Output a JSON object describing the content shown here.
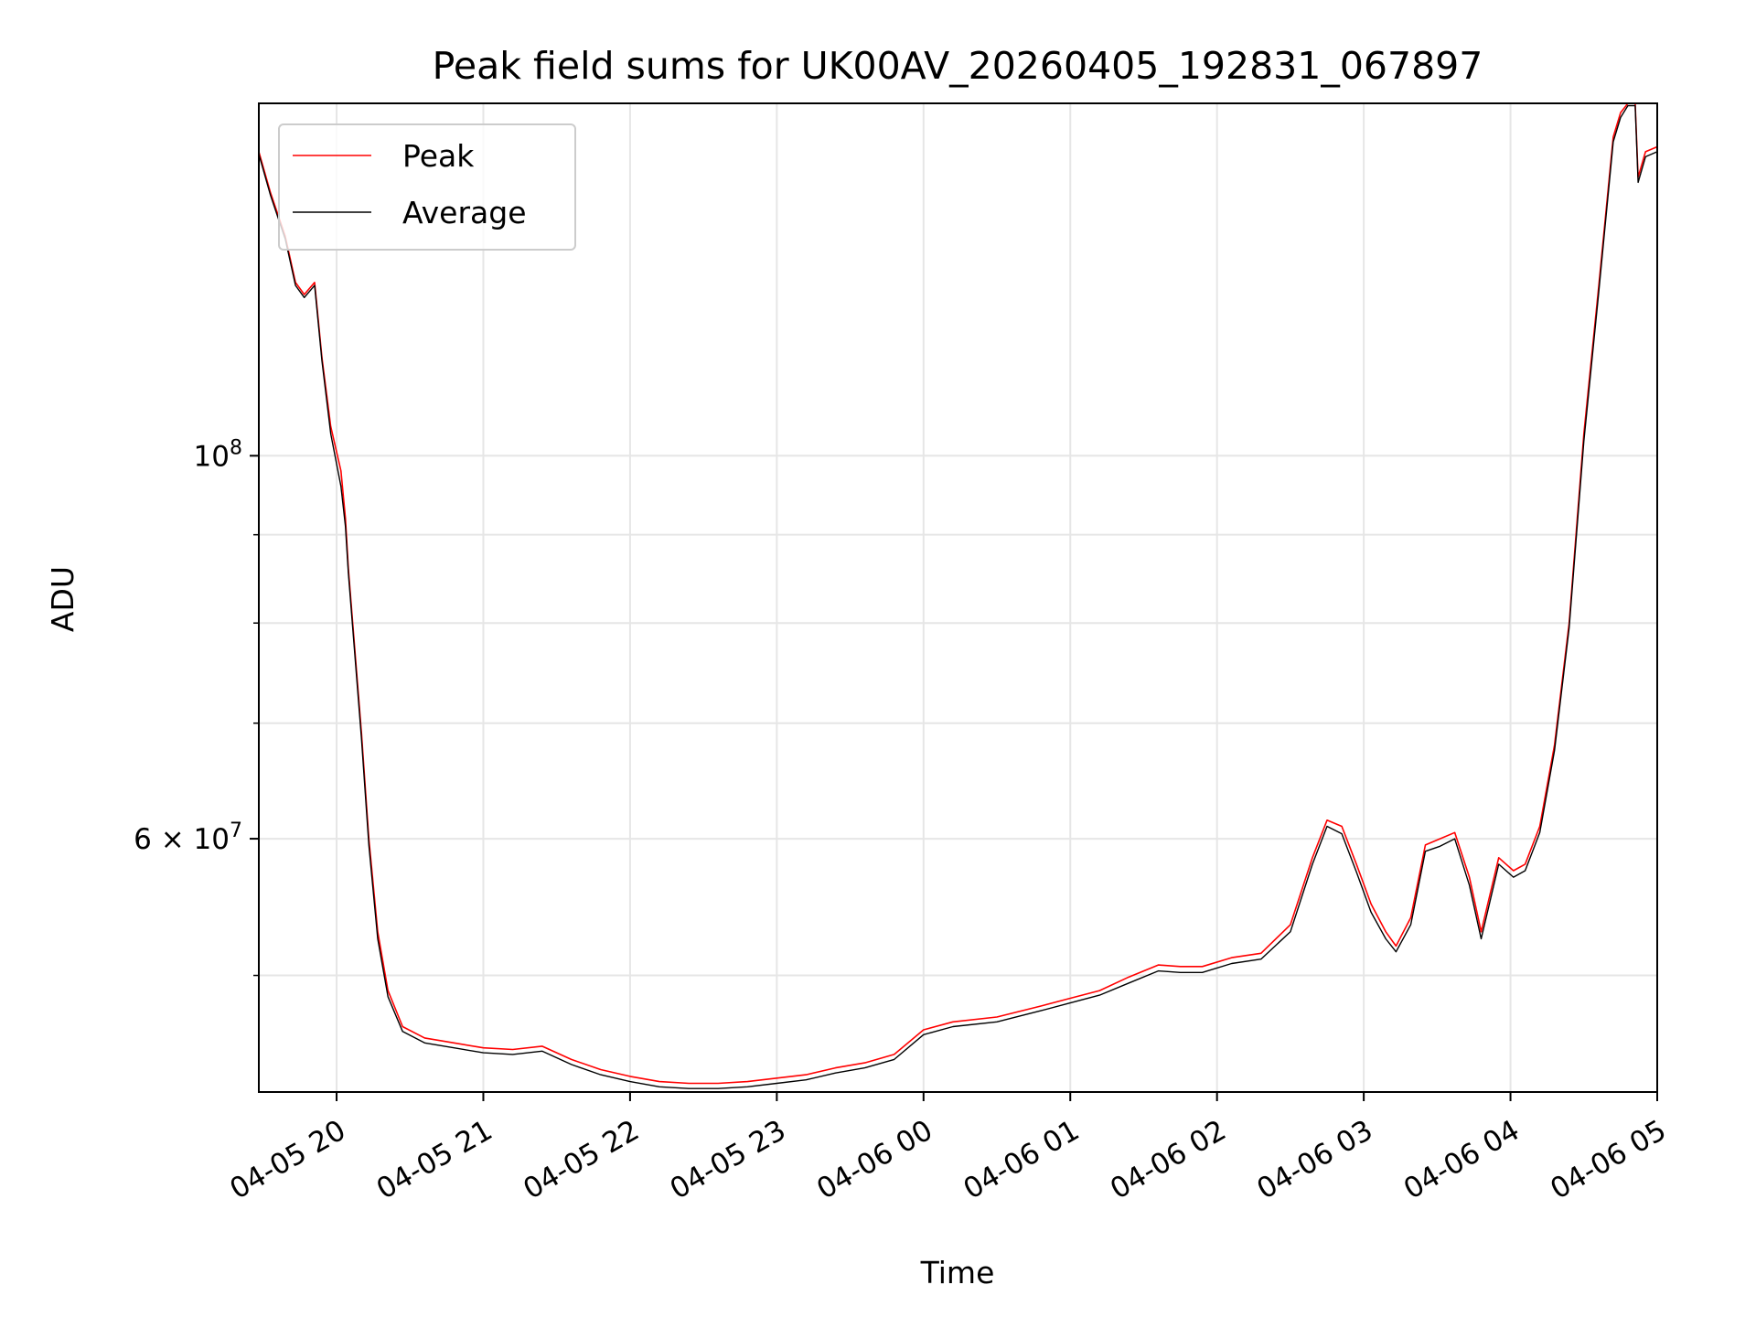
{
  "chart_data": {
    "type": "line",
    "title": "Peak field sums for UK00AV_20260405_192831_067897",
    "xlabel": "Time",
    "ylabel": "ADU",
    "yscale": "log",
    "ylim": [
      42800000,
      160000000
    ],
    "xlim_hours": [
      19.47,
      29.0
    ],
    "grid": true,
    "legend_position": "upper-left",
    "x_ticks": [
      {
        "hour": 20,
        "label": "04-05 20"
      },
      {
        "hour": 21,
        "label": "04-05 21"
      },
      {
        "hour": 22,
        "label": "04-05 22"
      },
      {
        "hour": 23,
        "label": "04-05 23"
      },
      {
        "hour": 24,
        "label": "04-06 00"
      },
      {
        "hour": 25,
        "label": "04-06 01"
      },
      {
        "hour": 26,
        "label": "04-06 02"
      },
      {
        "hour": 27,
        "label": "04-06 03"
      },
      {
        "hour": 28,
        "label": "04-06 04"
      },
      {
        "hour": 29,
        "label": "04-06 05"
      }
    ],
    "y_major_ticks": [
      {
        "value": 100000000,
        "base": "10",
        "exp": "8"
      },
      {
        "value": 60000000,
        "mantissa": "6",
        "times": "×",
        "base": "10",
        "exp": "7"
      }
    ],
    "y_minor_tick_values": [
      50000000,
      70000000,
      80000000,
      90000000
    ],
    "series": [
      {
        "name": "Peak",
        "color": "#ff0000",
        "x_hours": [
          19.47,
          19.55,
          19.65,
          19.72,
          19.78,
          19.85,
          19.9,
          19.96,
          20.03,
          20.06,
          20.08,
          20.12,
          20.17,
          20.22,
          20.28,
          20.35,
          20.45,
          20.6,
          20.8,
          21.0,
          21.2,
          21.4,
          21.6,
          21.8,
          22.0,
          22.2,
          22.4,
          22.6,
          22.8,
          23.0,
          23.2,
          23.4,
          23.6,
          23.8,
          24.0,
          24.2,
          24.5,
          24.8,
          25.0,
          25.2,
          25.4,
          25.6,
          25.75,
          25.9,
          26.1,
          26.3,
          26.5,
          26.65,
          26.75,
          26.85,
          26.95,
          27.05,
          27.15,
          27.22,
          27.32,
          27.42,
          27.52,
          27.62,
          27.72,
          27.8,
          27.92,
          28.02,
          28.1,
          28.2,
          28.3,
          28.4,
          28.5,
          28.6,
          28.7,
          28.75,
          28.8,
          28.85,
          28.87,
          28.92,
          29.0
        ],
        "y_values": [
          150000000,
          142000000,
          134000000,
          126000000,
          124000000,
          126000000,
          114000000,
          104000000,
          98000000,
          92000000,
          86000000,
          78000000,
          69000000,
          60000000,
          53000000,
          49000000,
          46700000,
          46000000,
          45700000,
          45400000,
          45300000,
          45500000,
          44700000,
          44100000,
          43700000,
          43400000,
          43300000,
          43300000,
          43400000,
          43600000,
          43800000,
          44200000,
          44500000,
          45000000,
          46500000,
          47000000,
          47300000,
          48000000,
          48500000,
          49000000,
          49900000,
          50700000,
          50600000,
          50600000,
          51200000,
          51500000,
          53500000,
          58500000,
          61500000,
          61000000,
          58000000,
          55000000,
          53000000,
          52000000,
          54000000,
          59500000,
          60000000,
          60500000,
          57000000,
          53000000,
          58500000,
          57500000,
          58000000,
          61000000,
          68000000,
          80000000,
          103000000,
          125000000,
          153000000,
          158000000,
          160000000,
          160000000,
          145000000,
          150000000,
          151000000
        ]
      },
      {
        "name": "Average",
        "color": "#000000",
        "x_hours": [
          19.47,
          19.55,
          19.65,
          19.72,
          19.78,
          19.85,
          19.9,
          19.96,
          20.03,
          20.06,
          20.08,
          20.12,
          20.17,
          20.22,
          20.28,
          20.35,
          20.45,
          20.6,
          20.8,
          21.0,
          21.2,
          21.4,
          21.6,
          21.8,
          22.0,
          22.2,
          22.4,
          22.6,
          22.8,
          23.0,
          23.2,
          23.4,
          23.6,
          23.8,
          24.0,
          24.2,
          24.5,
          24.8,
          25.0,
          25.2,
          25.4,
          25.6,
          25.75,
          25.9,
          26.1,
          26.3,
          26.5,
          26.65,
          26.75,
          26.85,
          26.95,
          27.05,
          27.15,
          27.22,
          27.32,
          27.42,
          27.52,
          27.62,
          27.72,
          27.8,
          27.92,
          28.02,
          28.1,
          28.2,
          28.3,
          28.4,
          28.5,
          28.6,
          28.7,
          28.75,
          28.8,
          28.85,
          28.87,
          28.92,
          29.0
        ],
        "y_values": [
          149500000,
          141500000,
          133500000,
          125500000,
          123500000,
          125500000,
          113500000,
          103000000,
          96000000,
          91000000,
          85500000,
          77500000,
          68500000,
          59500000,
          52500000,
          48600000,
          46400000,
          45700000,
          45400000,
          45100000,
          45000000,
          45200000,
          44400000,
          43800000,
          43400000,
          43100000,
          43000000,
          43000000,
          43100000,
          43300000,
          43500000,
          43900000,
          44200000,
          44700000,
          46200000,
          46700000,
          47000000,
          47700000,
          48200000,
          48700000,
          49500000,
          50300000,
          50200000,
          50200000,
          50800000,
          51100000,
          53000000,
          58000000,
          61000000,
          60400000,
          57400000,
          54400000,
          52500000,
          51600000,
          53500000,
          59000000,
          59400000,
          60000000,
          56400000,
          52500000,
          58000000,
          57000000,
          57500000,
          60500000,
          67500000,
          79500000,
          102000000,
          124000000,
          152000000,
          157000000,
          159500000,
          159500000,
          144000000,
          149000000,
          150000000
        ]
      }
    ]
  }
}
